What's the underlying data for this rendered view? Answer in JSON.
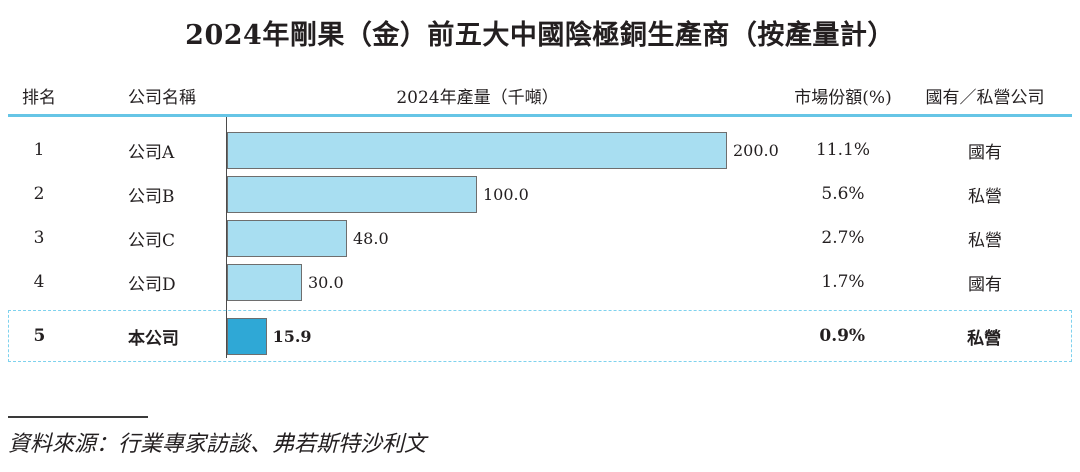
{
  "title": "2024年剛果（金）前五大中國陰極銅生產商（按產量計）",
  "table": {
    "headers": {
      "rank": "排名",
      "company": "公司名稱",
      "production": "2024年產量（千噸）",
      "share": "市場份額(%)",
      "ownership": "國有／私營公司"
    },
    "rows": [
      {
        "rank": "1",
        "company": "公司A",
        "production": 200.0,
        "production_label": "200.0",
        "share": "11.1%",
        "ownership": "國有",
        "highlight": false
      },
      {
        "rank": "2",
        "company": "公司B",
        "production": 100.0,
        "production_label": "100.0",
        "share": "5.6%",
        "ownership": "私營",
        "highlight": false
      },
      {
        "rank": "3",
        "company": "公司C",
        "production": 48.0,
        "production_label": "48.0",
        "share": "2.7%",
        "ownership": "私營",
        "highlight": false
      },
      {
        "rank": "4",
        "company": "公司D",
        "production": 30.0,
        "production_label": "30.0",
        "share": "1.7%",
        "ownership": "國有",
        "highlight": false
      },
      {
        "rank": "5",
        "company": "本公司",
        "production": 15.9,
        "production_label": "15.9",
        "share": "0.9%",
        "ownership": "私營",
        "highlight": true
      }
    ]
  },
  "source": "資料來源：行業專家訪談、弗若斯特沙利文",
  "colors": {
    "bar_fill": "#a8def1",
    "bar_fill_highlight": "#2fa8d6",
    "bar_border": "#6e6e6e",
    "header_rule": "#66c5e6",
    "highlight_dashed_border": "#7ed2ee",
    "text": "#231f20"
  },
  "chart_data": {
    "type": "bar",
    "orientation": "horizontal",
    "title": "2024年剛果（金）前五大中國陰極銅生產商（按產量計）",
    "xlabel": "2024年產量（千噸）",
    "categories": [
      "公司A",
      "公司B",
      "公司C",
      "公司D",
      "本公司"
    ],
    "values": [
      200.0,
      100.0,
      48.0,
      30.0,
      15.9
    ],
    "ranks": [
      1,
      2,
      3,
      4,
      5
    ],
    "market_share_pct": [
      11.1,
      5.6,
      2.7,
      1.7,
      0.9
    ],
    "ownership": [
      "國有",
      "私營",
      "私營",
      "國有",
      "私營"
    ],
    "highlighted_category": "本公司",
    "xlim": [
      0,
      210
    ],
    "grid": false,
    "legend": false,
    "source": "資料來源：行業專家訪談、弗若斯特沙利文"
  }
}
